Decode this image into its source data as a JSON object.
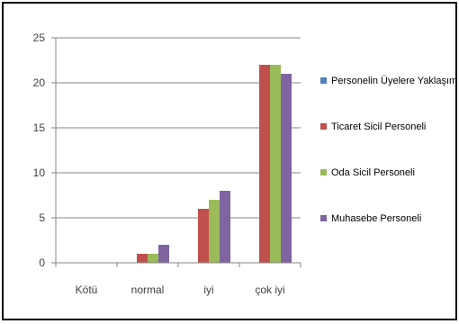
{
  "chart_data": {
    "type": "bar",
    "categories": [
      "Kötü",
      "normal",
      "iyi",
      "çok iyi"
    ],
    "series": [
      {
        "name": "Personelin Üyelere Yaklaşımı",
        "color": "#4F81BD",
        "values": [
          0,
          0,
          0,
          0
        ]
      },
      {
        "name": "Ticaret Sicil Personeli",
        "color": "#C0504D",
        "values": [
          0,
          1,
          6,
          22
        ]
      },
      {
        "name": "Oda Sicil Personeli",
        "color": "#9BBB59",
        "values": [
          0,
          1,
          7,
          22
        ]
      },
      {
        "name": "Muhasebe Personeli",
        "color": "#8064A2",
        "values": [
          0,
          2,
          8,
          21
        ]
      }
    ],
    "ylim": [
      0,
      25
    ],
    "yticks": [
      0,
      5,
      10,
      15,
      20,
      25
    ],
    "grid": true,
    "legend": "right"
  }
}
